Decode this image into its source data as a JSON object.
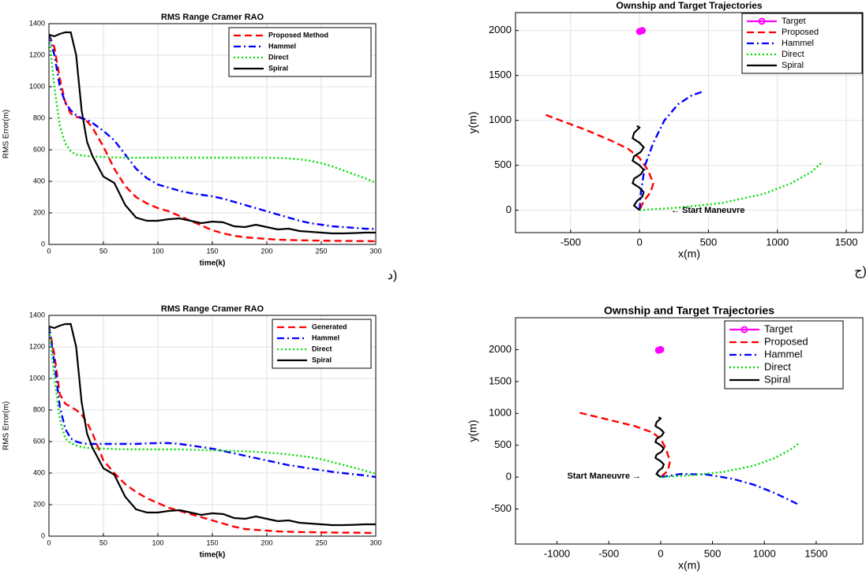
{
  "chart_data": [
    {
      "type": "line",
      "title": "RMS Range Cramer RAO",
      "xlabel": "time(k)",
      "ylabel": "RMS Error(m)",
      "caption": "د)",
      "x": [
        0,
        5,
        10,
        15,
        20,
        25,
        30,
        35,
        40,
        50,
        60,
        70,
        80,
        90,
        100,
        110,
        120,
        130,
        140,
        150,
        160,
        170,
        180,
        190,
        200,
        210,
        220,
        230,
        240,
        250,
        260,
        270,
        280,
        290,
        300
      ],
      "series": [
        {
          "name": "Proposed Method",
          "color": "#ff0000",
          "style": "dashed",
          "values": [
            1330,
            1250,
            1050,
            900,
            830,
            810,
            800,
            780,
            740,
            620,
            480,
            370,
            300,
            260,
            230,
            210,
            180,
            150,
            120,
            90,
            70,
            55,
            45,
            40,
            35,
            30,
            28,
            26,
            25,
            24,
            23,
            22,
            22,
            21,
            20
          ]
        },
        {
          "name": "Hammel",
          "color": "#0000ff",
          "style": "dashdot",
          "values": [
            1330,
            1200,
            1000,
            900,
            850,
            820,
            800,
            790,
            770,
            720,
            660,
            570,
            480,
            420,
            380,
            360,
            340,
            325,
            315,
            305,
            290,
            270,
            250,
            230,
            210,
            190,
            170,
            150,
            135,
            125,
            115,
            110,
            105,
            100,
            98
          ]
        },
        {
          "name": "Direct",
          "color": "#00dd00",
          "style": "dotted",
          "values": [
            1330,
            1000,
            750,
            640,
            590,
            570,
            565,
            560,
            558,
            555,
            552,
            550,
            550,
            550,
            550,
            550,
            550,
            550,
            550,
            550,
            550,
            550,
            550,
            550,
            550,
            548,
            545,
            540,
            530,
            515,
            495,
            470,
            445,
            420,
            390
          ]
        },
        {
          "name": "Spiral",
          "color": "#000000",
          "style": "solid",
          "values": [
            1330,
            1320,
            1335,
            1345,
            1345,
            1200,
            850,
            650,
            560,
            430,
            390,
            250,
            170,
            150,
            150,
            160,
            165,
            150,
            135,
            145,
            140,
            115,
            110,
            125,
            110,
            95,
            100,
            85,
            80,
            75,
            70,
            70,
            72,
            75,
            75
          ]
        }
      ],
      "xlim": [
        0,
        300
      ],
      "ylim": [
        0,
        1400
      ],
      "xticks": [
        0,
        50,
        100,
        150,
        200,
        250,
        300
      ],
      "yticks": [
        0,
        200,
        400,
        600,
        800,
        1000,
        1200,
        1400
      ],
      "grid": true,
      "legend": "upper right"
    },
    {
      "type": "line",
      "title": "Ownship and Target Trajectories",
      "xlabel": "x(m)",
      "ylabel": "y(m)",
      "caption": "ج)",
      "annotation": "← Start Maneuvre",
      "series": [
        {
          "name": "Target",
          "color": "#ff00ff",
          "style": "solid",
          "marker": true,
          "x": [
            0,
            20
          ],
          "values": [
            1990,
            2000
          ]
        },
        {
          "name": "Proposed",
          "color": "#ff0000",
          "style": "dashed",
          "x": [
            -680,
            -400,
            -200,
            -80,
            0,
            60,
            100,
            80,
            30,
            0
          ],
          "values": [
            1060,
            900,
            770,
            680,
            580,
            450,
            300,
            200,
            100,
            0
          ]
        },
        {
          "name": "Hammel",
          "color": "#0000ff",
          "style": "dashdot",
          "x": [
            0,
            10,
            40,
            100,
            180,
            280,
            380,
            460
          ],
          "values": [
            0,
            200,
            500,
            750,
            1000,
            1180,
            1280,
            1320
          ]
        },
        {
          "name": "Direct",
          "color": "#00dd00",
          "style": "dotted",
          "x": [
            0,
            300,
            600,
            900,
            1100,
            1250,
            1330
          ],
          "values": [
            0,
            30,
            80,
            180,
            300,
            430,
            540
          ]
        },
        {
          "name": "Spiral",
          "color": "#000000",
          "style": "solid",
          "x": [
            0,
            -40,
            -20,
            20,
            30,
            0,
            -50,
            -40,
            10,
            30,
            0,
            -50,
            -40,
            10,
            30,
            0,
            -50,
            -40,
            0,
            -20
          ],
          "values": [
            0,
            50,
            100,
            150,
            200,
            250,
            300,
            350,
            400,
            450,
            500,
            550,
            600,
            650,
            700,
            750,
            800,
            860,
            920,
            940
          ]
        }
      ],
      "xlim": [
        -900,
        1620
      ],
      "ylim": [
        -250,
        2200
      ],
      "xticks": [
        -500,
        0,
        500,
        1000,
        1500
      ],
      "yticks": [
        0,
        500,
        1000,
        1500,
        2000
      ],
      "grid": true,
      "legend": "upper right"
    },
    {
      "type": "line",
      "title": "RMS Range Cramer RAO",
      "xlabel": "time(k)",
      "ylabel": "RMS Error(m)",
      "x": [
        0,
        5,
        10,
        15,
        20,
        25,
        30,
        35,
        40,
        50,
        60,
        70,
        80,
        90,
        100,
        110,
        120,
        130,
        140,
        150,
        160,
        170,
        180,
        190,
        200,
        210,
        220,
        230,
        240,
        250,
        260,
        270,
        280,
        290,
        300
      ],
      "series": [
        {
          "name": "Generated",
          "color": "#ff0000",
          "style": "dashed",
          "values": [
            1330,
            1150,
            900,
            840,
            820,
            800,
            770,
            720,
            650,
            480,
            400,
            330,
            280,
            240,
            210,
            180,
            160,
            140,
            120,
            100,
            80,
            60,
            45,
            40,
            35,
            30,
            28,
            26,
            25,
            24,
            23,
            22,
            22,
            21,
            20
          ]
        },
        {
          "name": "Hammel",
          "color": "#0000ff",
          "style": "dashdot",
          "values": [
            1330,
            1100,
            820,
            680,
            620,
            600,
            590,
            585,
            585,
            585,
            585,
            585,
            585,
            588,
            590,
            590,
            585,
            575,
            565,
            555,
            540,
            525,
            510,
            495,
            480,
            465,
            450,
            440,
            428,
            418,
            408,
            400,
            392,
            385,
            375
          ]
        },
        {
          "name": "Direct",
          "color": "#00dd00",
          "style": "dotted",
          "values": [
            1330,
            1000,
            740,
            620,
            590,
            575,
            565,
            560,
            558,
            555,
            552,
            550,
            550,
            550,
            550,
            550,
            550,
            548,
            546,
            544,
            542,
            540,
            538,
            535,
            530,
            525,
            518,
            510,
            500,
            488,
            470,
            452,
            435,
            415,
            395
          ]
        },
        {
          "name": "Spiral",
          "color": "#000000",
          "style": "solid",
          "values": [
            1330,
            1320,
            1335,
            1345,
            1345,
            1200,
            850,
            650,
            560,
            430,
            390,
            250,
            170,
            150,
            150,
            160,
            165,
            150,
            135,
            145,
            140,
            115,
            110,
            125,
            110,
            95,
            100,
            85,
            80,
            75,
            70,
            70,
            72,
            75,
            75
          ]
        }
      ],
      "xlim": [
        0,
        300
      ],
      "ylim": [
        0,
        1400
      ],
      "xticks": [
        0,
        50,
        100,
        150,
        200,
        250,
        300
      ],
      "yticks": [
        0,
        200,
        400,
        600,
        800,
        1000,
        1200,
        1400
      ],
      "grid": true,
      "legend": "upper right"
    },
    {
      "type": "line",
      "title": "Ownship and Target Trajectories",
      "xlabel": "x(m)",
      "ylabel": "y(m)",
      "annotation": "Start Maneuvre →",
      "series": [
        {
          "name": "Target",
          "color": "#ff00ff",
          "style": "solid",
          "marker": true,
          "x": [
            -20,
            0
          ],
          "values": [
            1990,
            2000
          ]
        },
        {
          "name": "Proposed",
          "color": "#ff0000",
          "style": "dashed",
          "x": [
            -780,
            -500,
            -250,
            -80,
            0,
            50,
            90,
            70,
            0
          ],
          "values": [
            1010,
            900,
            800,
            700,
            600,
            450,
            250,
            100,
            0
          ]
        },
        {
          "name": "Hammel",
          "color": "#0000ff",
          "style": "dashdot",
          "x": [
            0,
            200,
            450,
            700,
            900,
            1100,
            1330
          ],
          "values": [
            0,
            50,
            40,
            -30,
            -120,
            -250,
            -430
          ]
        },
        {
          "name": "Direct",
          "color": "#00dd00",
          "style": "dotted",
          "x": [
            0,
            300,
            600,
            900,
            1100,
            1250,
            1340
          ],
          "values": [
            0,
            30,
            80,
            180,
            300,
            430,
            540
          ]
        },
        {
          "name": "Spiral",
          "color": "#000000",
          "style": "solid",
          "x": [
            0,
            -40,
            -20,
            20,
            30,
            0,
            -50,
            -40,
            10,
            30,
            0,
            -50,
            -40,
            10,
            30,
            0,
            -50,
            -40,
            0,
            -20
          ],
          "values": [
            0,
            50,
            100,
            150,
            200,
            250,
            300,
            350,
            400,
            450,
            500,
            550,
            600,
            650,
            700,
            750,
            800,
            860,
            920,
            940
          ]
        }
      ],
      "xlim": [
        -1400,
        1950
      ],
      "ylim": [
        -1050,
        2500
      ],
      "xticks": [
        -1000,
        -500,
        0,
        500,
        1000,
        1500
      ],
      "yticks": [
        -500,
        0,
        500,
        1000,
        1500,
        2000
      ],
      "grid": false,
      "legend": "upper right"
    }
  ]
}
